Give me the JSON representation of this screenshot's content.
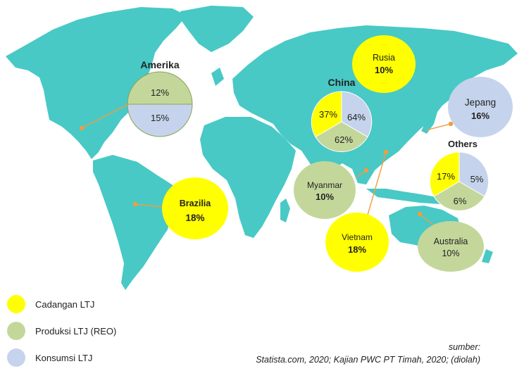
{
  "colors": {
    "land": "#48C9C6",
    "reserves": "#FFFF00",
    "production": "#C4D79B",
    "consumption": "#C5D4EC",
    "connector": "#F39C3C"
  },
  "regions": {
    "amerika": {
      "name": "Amerika",
      "production": "12%",
      "consumption": "15%"
    },
    "china": {
      "name": "China",
      "reserves": "37%",
      "consumption": "64%",
      "production": "62%"
    },
    "rusia": {
      "name": "Rusia",
      "value": "10%"
    },
    "jepang": {
      "name": "Jepang",
      "value": "16%"
    },
    "others": {
      "name": "Others",
      "reserves": "17%",
      "consumption": "5%",
      "production": "6%"
    },
    "brazilia": {
      "name": "Brazilia",
      "value": "18%"
    },
    "myanmar": {
      "name": "Myanmar",
      "value": "10%"
    },
    "vietnam": {
      "name": "Vietnam",
      "value": "18%"
    },
    "australia": {
      "name": "Australia",
      "value": "10%"
    }
  },
  "legend": {
    "reserves": "Cadangan LTJ",
    "production": "Produksi LTJ (REO)",
    "consumption": "Konsumsi LTJ"
  },
  "source": {
    "line1": "sumber:",
    "line2": "Statista.com, 2020; Kajian PWC PT Timah, 2020;  (diolah)"
  }
}
